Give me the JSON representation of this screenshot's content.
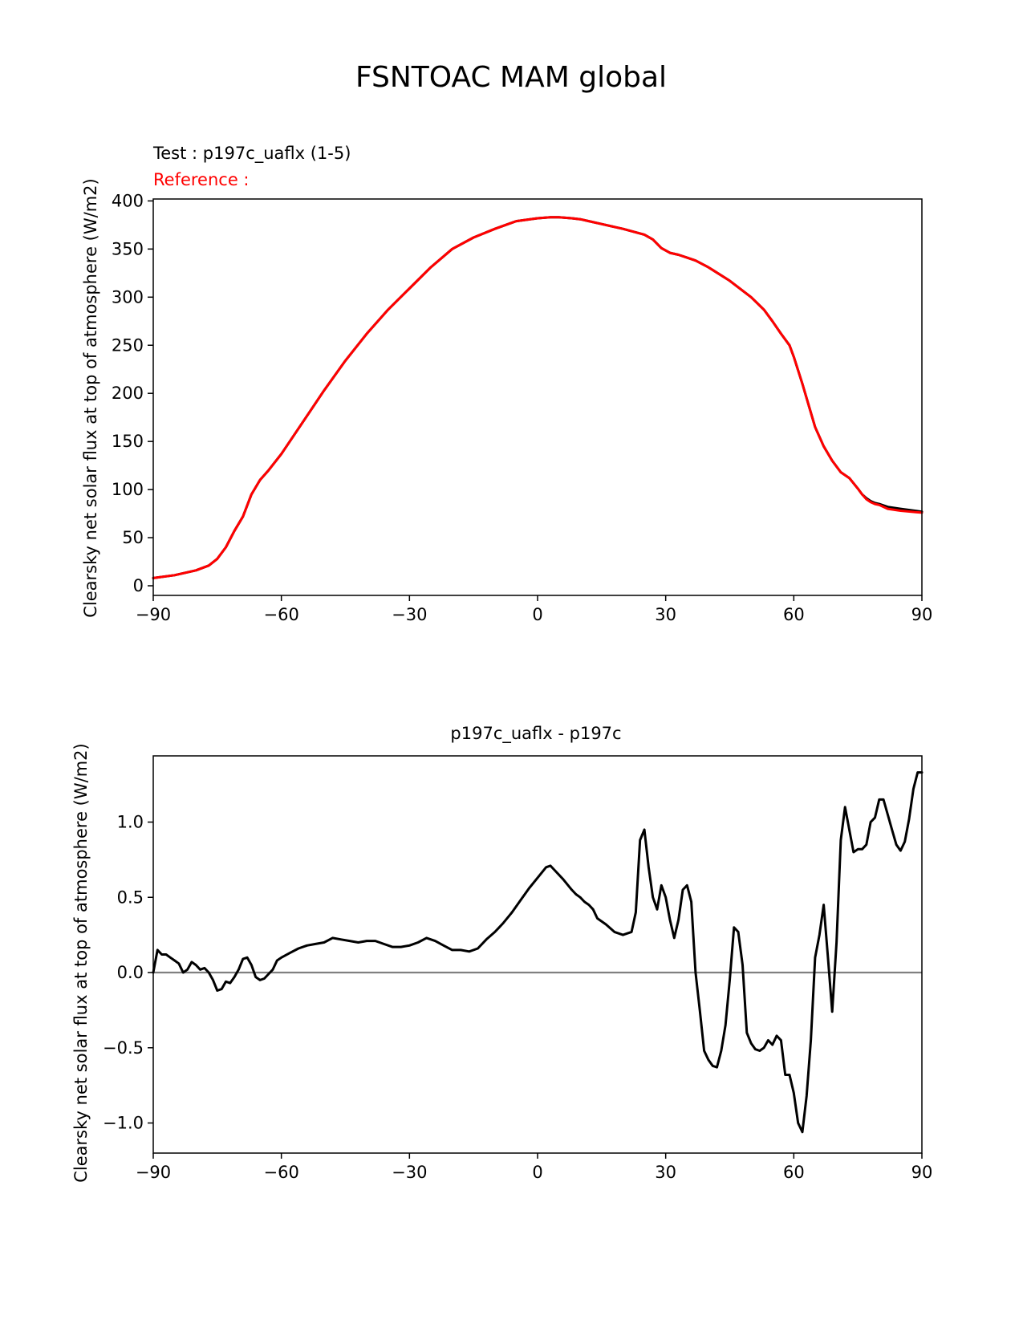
{
  "figure": {
    "title": "FSNTOAC MAM global"
  },
  "chart_data": [
    {
      "type": "line",
      "test_label": "Test : p197c_uaflx (1-5)",
      "reference_label": "Reference :",
      "xlabel": "",
      "ylabel": "Clearsky net solar flux at top of atmosphere (W/m2)",
      "xlim": [
        -90,
        90
      ],
      "ylim": [
        -10,
        402
      ],
      "xticks": [
        "−90",
        "−60",
        "−30",
        "0",
        "30",
        "60",
        "90"
      ],
      "yticks": [
        "0",
        "50",
        "100",
        "150",
        "200",
        "250",
        "300",
        "350",
        "400"
      ],
      "x": [
        -90,
        -85,
        -80,
        -77,
        -75,
        -73,
        -71,
        -69,
        -67,
        -65,
        -63,
        -60,
        -55,
        -50,
        -45,
        -40,
        -35,
        -30,
        -25,
        -20,
        -15,
        -10,
        -5,
        0,
        3,
        5,
        8,
        10,
        12,
        15,
        18,
        20,
        25,
        27,
        29,
        31,
        33,
        35,
        37,
        40,
        45,
        50,
        53,
        55,
        57,
        59,
        60,
        62,
        63,
        65,
        67,
        69,
        71,
        73,
        75,
        76,
        77,
        78,
        79,
        80,
        82,
        85,
        90
      ],
      "series": [
        {
          "name": "Test",
          "color": "#000000",
          "values": [
            8,
            11,
            16,
            21,
            28,
            40,
            57,
            72,
            95,
            110,
            120,
            137,
            170,
            203,
            234,
            262,
            287,
            309,
            331,
            350,
            362,
            371,
            379,
            382,
            383,
            383,
            382,
            381,
            379,
            376,
            373,
            371,
            365,
            360,
            351,
            346,
            344,
            341,
            338,
            331,
            317,
            300,
            287,
            275,
            262,
            250,
            238,
            210,
            195,
            165,
            145,
            130,
            118,
            112,
            101,
            95,
            91,
            88,
            86,
            85,
            82,
            80,
            77
          ]
        },
        {
          "name": "Reference",
          "color": "#ff0000",
          "values": [
            8,
            11,
            16,
            21,
            28,
            40,
            57,
            72,
            95,
            110,
            120,
            137,
            170,
            203,
            234,
            262,
            287,
            309,
            331,
            350,
            362,
            371,
            379,
            382,
            383,
            383,
            382,
            381,
            379,
            376,
            373,
            371,
            365,
            360,
            351,
            346,
            344,
            341,
            338,
            331,
            317,
            300,
            287,
            275,
            262,
            250,
            238,
            210,
            195,
            165,
            145,
            130,
            118,
            112,
            101,
            95,
            90,
            87,
            85,
            84,
            80,
            78,
            76
          ]
        }
      ]
    },
    {
      "type": "line",
      "title": "p197c_uaflx - p197c",
      "xlabel": "",
      "ylabel": "Clearsky net solar flux at top of atmosphere (W/m2)",
      "xlim": [
        -90,
        90
      ],
      "ylim": [
        -1.2,
        1.44
      ],
      "xticks": [
        "−90",
        "−60",
        "−30",
        "0",
        "30",
        "60",
        "90"
      ],
      "yticks": [
        "−1.0",
        "−0.5",
        "0.0",
        "0.5",
        "1.0"
      ],
      "zero_line_color": "#808080",
      "x": [
        -90,
        -89,
        -88,
        -87,
        -86,
        -85,
        -84,
        -83,
        -82,
        -81,
        -80,
        -79,
        -78,
        -77,
        -76,
        -75,
        -74,
        -73,
        -72,
        -71,
        -70,
        -69,
        -68,
        -67,
        -66,
        -65,
        -64,
        -63,
        -62,
        -61,
        -60,
        -58,
        -56,
        -54,
        -52,
        -50,
        -48,
        -46,
        -44,
        -42,
        -40,
        -38,
        -36,
        -34,
        -32,
        -30,
        -28,
        -26,
        -24,
        -22,
        -20,
        -18,
        -16,
        -14,
        -12,
        -10,
        -9,
        -8,
        -6,
        -4,
        -2,
        0,
        2,
        3,
        4,
        6,
        8,
        9,
        10,
        11,
        12,
        13,
        14,
        16,
        18,
        20,
        22,
        23,
        24,
        25,
        26,
        27,
        28,
        29,
        30,
        31,
        32,
        33,
        34,
        35,
        36,
        37,
        38,
        39,
        40,
        41,
        42,
        43,
        44,
        45,
        46,
        47,
        48,
        49,
        50,
        51,
        52,
        53,
        54,
        55,
        56,
        57,
        58,
        59,
        60,
        61,
        62,
        63,
        64,
        65,
        66,
        67,
        68,
        69,
        70,
        71,
        72,
        73,
        74,
        75,
        76,
        77,
        78,
        79,
        80,
        81,
        82,
        83,
        84,
        85,
        86,
        87,
        88,
        89,
        90
      ],
      "series": [
        {
          "name": "p197c_uaflx - p197c",
          "color": "#000000",
          "values": [
            0.0,
            0.15,
            0.12,
            0.12,
            0.1,
            0.08,
            0.06,
            0.0,
            0.02,
            0.07,
            0.05,
            0.02,
            0.03,
            0.0,
            -0.05,
            -0.12,
            -0.11,
            -0.06,
            -0.07,
            -0.03,
            0.02,
            0.09,
            0.1,
            0.05,
            -0.03,
            -0.05,
            -0.04,
            -0.01,
            0.02,
            0.08,
            0.1,
            0.13,
            0.16,
            0.18,
            0.19,
            0.2,
            0.23,
            0.22,
            0.21,
            0.2,
            0.21,
            0.21,
            0.19,
            0.17,
            0.17,
            0.18,
            0.2,
            0.23,
            0.21,
            0.18,
            0.15,
            0.15,
            0.14,
            0.16,
            0.22,
            0.27,
            0.3,
            0.33,
            0.4,
            0.48,
            0.56,
            0.63,
            0.7,
            0.71,
            0.68,
            0.62,
            0.55,
            0.52,
            0.5,
            0.47,
            0.45,
            0.42,
            0.36,
            0.32,
            0.27,
            0.25,
            0.27,
            0.4,
            0.88,
            0.95,
            0.7,
            0.5,
            0.42,
            0.58,
            0.5,
            0.35,
            0.23,
            0.35,
            0.55,
            0.58,
            0.47,
            0.0,
            -0.25,
            -0.52,
            -0.58,
            -0.62,
            -0.63,
            -0.52,
            -0.35,
            -0.05,
            0.3,
            0.27,
            0.05,
            -0.4,
            -0.47,
            -0.51,
            -0.52,
            -0.5,
            -0.45,
            -0.48,
            -0.42,
            -0.45,
            -0.68,
            -0.68,
            -0.8,
            -1.0,
            -1.06,
            -0.82,
            -0.45,
            0.1,
            0.25,
            0.45,
            0.1,
            -0.26,
            0.2,
            0.88,
            1.1,
            0.95,
            0.8,
            0.82,
            0.82,
            0.85,
            1.0,
            1.03,
            1.15,
            1.15,
            1.05,
            0.95,
            0.85,
            0.81,
            0.87,
            1.02,
            1.22,
            1.33,
            1.33
          ]
        }
      ]
    }
  ]
}
